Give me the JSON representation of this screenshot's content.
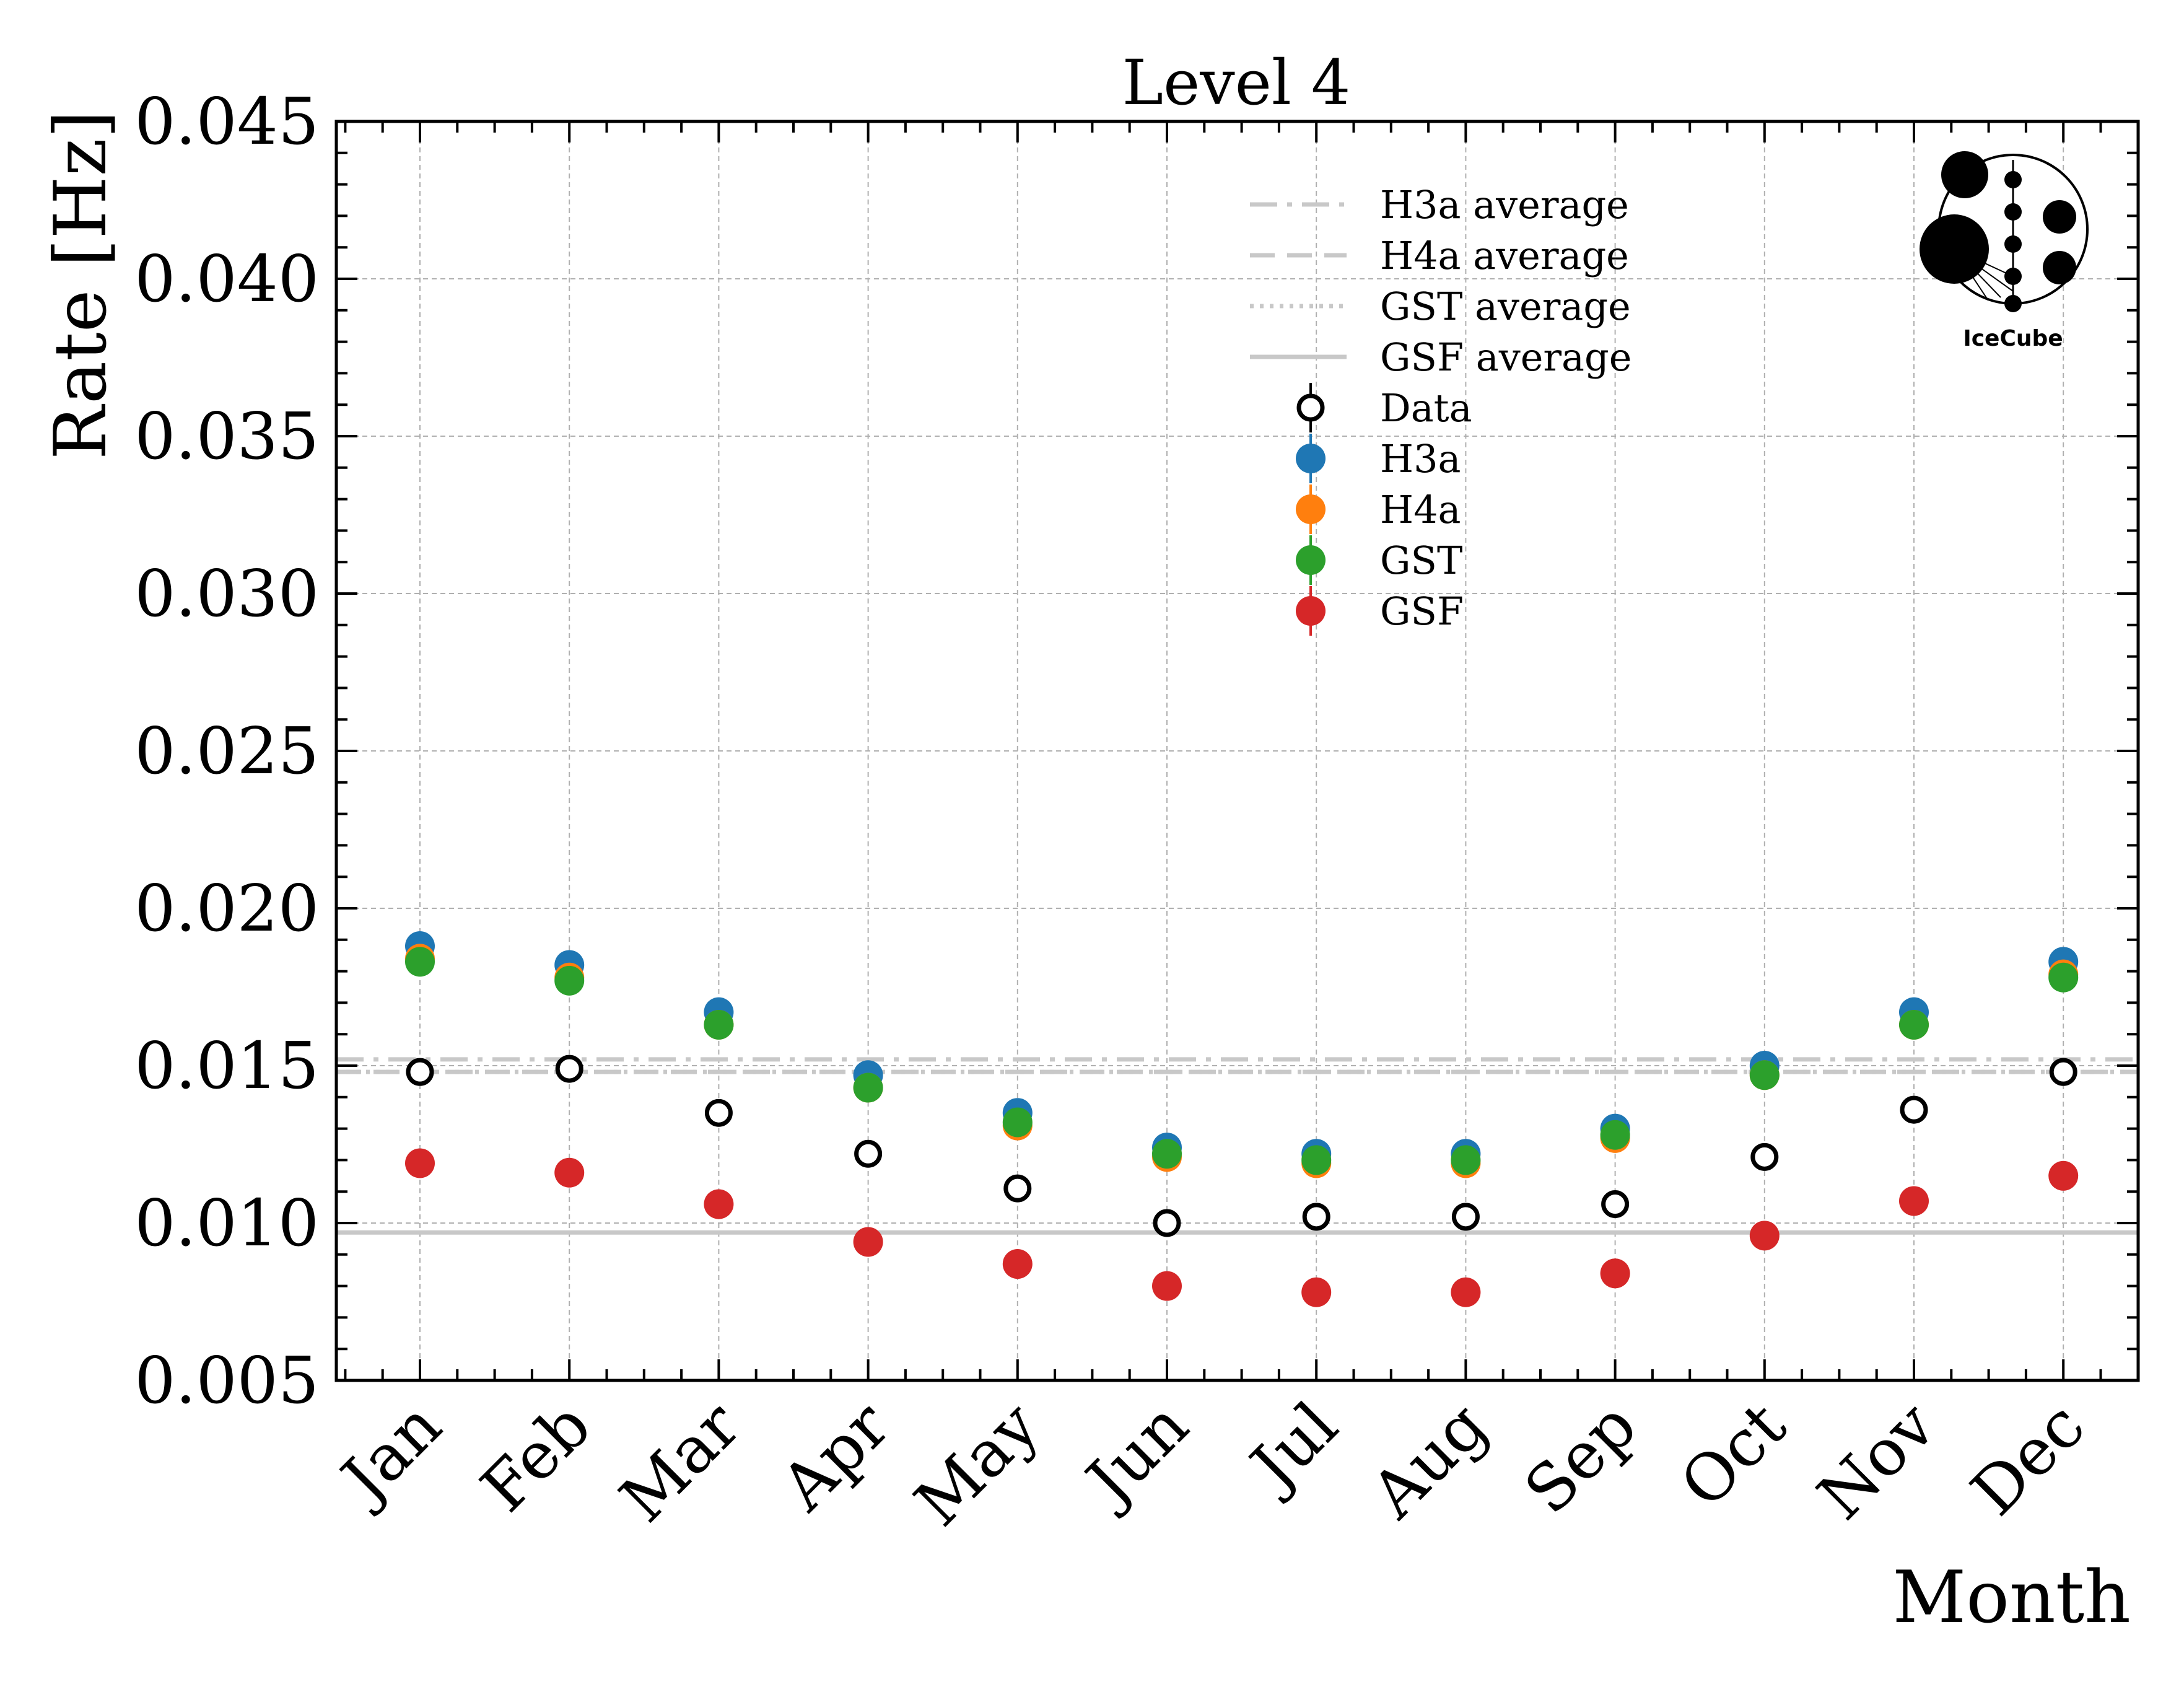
{
  "colors": {
    "data": "#000000",
    "H3a": "#1f77b4",
    "H4a": "#ff7f0e",
    "GST": "#2ca02c",
    "GSF": "#d62728",
    "average_line": "#c8c8c8",
    "grid": "#b0b0b0"
  },
  "logo": {
    "icon": "icecube-logo-icon",
    "text": "IceCube"
  },
  "chart_data": {
    "type": "scatter",
    "title": "Level 4",
    "xlabel": "Month",
    "ylabel": "Rate [Hz]",
    "ylim": [
      0.005,
      0.045
    ],
    "yticks": [
      "0.005",
      "0.010",
      "0.015",
      "0.020",
      "0.025",
      "0.030",
      "0.035",
      "0.040",
      "0.045"
    ],
    "ytick_values": [
      0.005,
      0.01,
      0.015,
      0.02,
      0.025,
      0.03,
      0.035,
      0.04,
      0.045
    ],
    "categories": [
      "Jan",
      "Feb",
      "Mar",
      "Apr",
      "May",
      "Jun",
      "Jul",
      "Aug",
      "Sep",
      "Oct",
      "Nov",
      "Dec"
    ],
    "grid": true,
    "legend_position": "top-center",
    "series": [
      {
        "name": "H3a",
        "key": "H3a",
        "values": [
          0.0188,
          0.0182,
          0.0167,
          0.0147,
          0.0135,
          0.0124,
          0.0122,
          0.0122,
          0.013,
          0.015,
          0.0167,
          0.0183
        ]
      },
      {
        "name": "H4a",
        "key": "H4a",
        "values": [
          0.0184,
          0.0178,
          0.0163,
          0.0143,
          0.0131,
          0.0121,
          0.0119,
          0.0119,
          0.0127,
          0.0147,
          0.0163,
          0.0179
        ]
      },
      {
        "name": "GST",
        "key": "GST",
        "values": [
          0.0183,
          0.0177,
          0.0163,
          0.0143,
          0.0132,
          0.0122,
          0.012,
          0.012,
          0.0128,
          0.0147,
          0.0163,
          0.0178
        ]
      },
      {
        "name": "GSF",
        "key": "GSF",
        "values": [
          0.0119,
          0.0116,
          0.0106,
          0.0094,
          0.0087,
          0.008,
          0.0078,
          0.0078,
          0.0084,
          0.0096,
          0.0107,
          0.0115
        ]
      },
      {
        "name": "Data",
        "key": "data",
        "values": [
          0.0148,
          0.0149,
          0.0135,
          0.0122,
          0.0111,
          0.01,
          0.0102,
          0.0102,
          0.0106,
          0.0121,
          0.0136,
          0.0148
        ],
        "hollow": true
      }
    ],
    "averages": [
      {
        "name": "H3a average",
        "value": 0.0152,
        "style": "dashdot"
      },
      {
        "name": "H4a average",
        "value": 0.0148,
        "style": "dashed"
      },
      {
        "name": "GST average",
        "value": 0.0148,
        "style": "dotted"
      },
      {
        "name": "GSF average",
        "value": 0.0097,
        "style": "solid"
      }
    ],
    "legend": [
      "H3a average",
      "H4a average",
      "GST average",
      "GSF average",
      "Data",
      "H3a",
      "H4a",
      "GST",
      "GSF"
    ]
  }
}
